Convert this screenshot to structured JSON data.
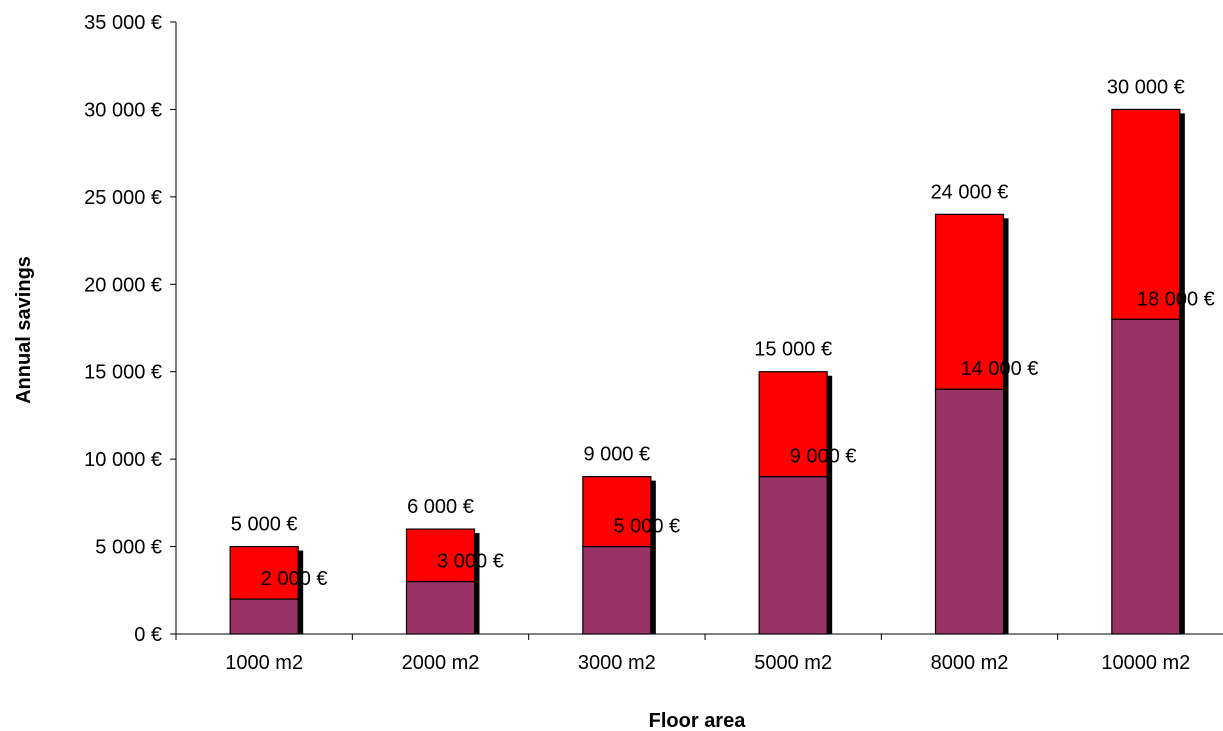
{
  "chart_data": {
    "type": "bar",
    "stacked": true,
    "xlabel": "Floor area",
    "ylabel": "Annual savings",
    "categories": [
      "1000 m2",
      "2000 m2",
      "3000 m2",
      "5000 m2",
      "8000 m2",
      "10000 m2"
    ],
    "ylim": [
      0,
      35000
    ],
    "yticks": [
      0,
      5000,
      10000,
      15000,
      20000,
      25000,
      30000,
      35000
    ],
    "ytick_labels": [
      "0 €",
      "5 000 €",
      "10 000 €",
      "15 000 €",
      "20 000 €",
      "25 000 €",
      "30 000 €",
      "35 000 €"
    ],
    "series": [
      {
        "values": [
          2000,
          3000,
          5000,
          9000,
          14000,
          18000
        ],
        "labels": [
          "2 000 €",
          "3 000 €",
          "5 000 €",
          "9 000 €",
          "14 000 €",
          "18 000 €"
        ],
        "color": "#993366"
      },
      {
        "values": [
          3000,
          3000,
          4000,
          6000,
          10000,
          12000
        ],
        "totals": [
          5000,
          6000,
          9000,
          15000,
          24000,
          30000
        ],
        "labels": [
          "5 000 €",
          "6 000 €",
          "9 000 €",
          "15 000 €",
          "24 000 €",
          "30 000 €"
        ],
        "color": "#ff0000"
      }
    ],
    "grid": false,
    "legend": false
  }
}
